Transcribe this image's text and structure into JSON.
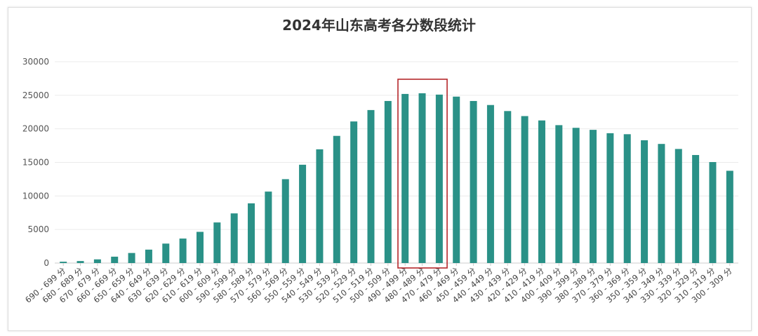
{
  "chart_data": {
    "type": "bar",
    "title": "2024年山东高考各分数段统计",
    "xlabel": "",
    "ylabel": "",
    "ylim": [
      0,
      30000
    ],
    "yticks": [
      0,
      5000,
      10000,
      15000,
      20000,
      25000,
      30000
    ],
    "grid": true,
    "bar_color": "#2a9187",
    "highlight_color": "#b5272b",
    "highlighted_categories": [
      "490 - 499 分",
      "480 - 489 分",
      "470 - 479 分"
    ],
    "categories": [
      "690 - 699 分",
      "680 - 689 分",
      "670 - 679 分",
      "660 - 669 分",
      "650 - 659 分",
      "640 - 649 分",
      "630 - 639 分",
      "620 - 629 分",
      "610 - 619 分",
      "600 - 609 分",
      "590 - 599 分",
      "580 - 589 分",
      "570 - 579 分",
      "560 - 569 分",
      "550 - 559 分",
      "540 - 549 分",
      "530 - 539 分",
      "520 - 529 分",
      "510 - 519 分",
      "500 - 509 分",
      "490 - 499 分",
      "480 - 489 分",
      "470 - 479 分",
      "460 - 469 分",
      "450 - 459 分",
      "440 - 449 分",
      "430 - 439 分",
      "420 - 429 分",
      "410 - 419 分",
      "400 - 409 分",
      "390 - 399 分",
      "380 - 389 分",
      "370 - 379 分",
      "360 - 369 分",
      "350 - 359 分",
      "340 - 349 分",
      "330 - 339 分",
      "320 - 329 分",
      "310 - 319 分",
      "300 - 309 分"
    ],
    "values": [
      200,
      300,
      550,
      950,
      1500,
      2000,
      2900,
      3650,
      4650,
      6050,
      7400,
      8900,
      10650,
      12500,
      14650,
      16950,
      18950,
      21100,
      22800,
      24150,
      25200,
      25300,
      25100,
      24800,
      24150,
      23550,
      22650,
      21900,
      21250,
      20550,
      20150,
      19850,
      19350,
      19200,
      18300,
      17750,
      17000,
      16100,
      15050,
      13750
    ]
  }
}
